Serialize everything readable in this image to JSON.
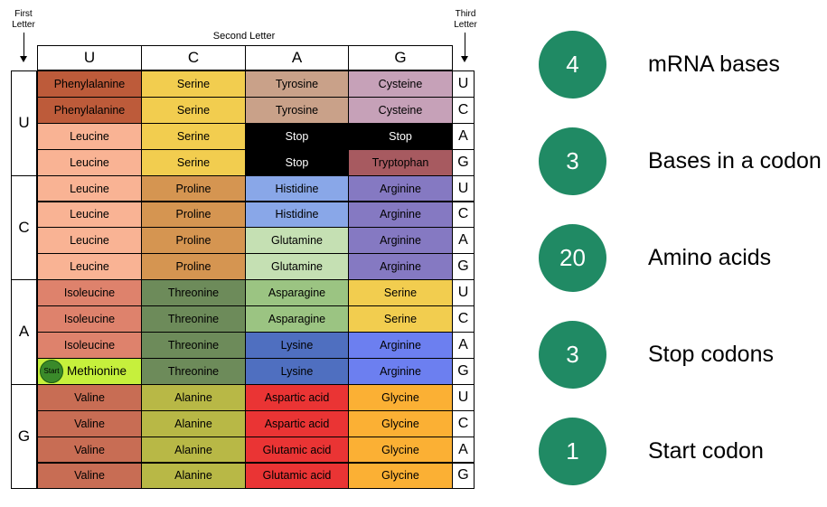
{
  "labels": {
    "first_letter": "First Letter",
    "second_letter": "Second Letter",
    "third_letter": "Third Letter"
  },
  "second_headers": [
    "U",
    "C",
    "A",
    "G"
  ],
  "first_letters": [
    "U",
    "C",
    "A",
    "G"
  ],
  "third_letters": [
    "U",
    "C",
    "A",
    "G"
  ],
  "start_badge": "Start",
  "codon_table": [
    [
      [
        "Phenylalanine",
        "#bd5b3a",
        "#000"
      ],
      [
        "Serine",
        "#f2cd4f",
        "#000"
      ],
      [
        "Tyrosine",
        "#c9a189",
        "#000"
      ],
      [
        "Cysteine",
        "#c6a1b8",
        "#000"
      ]
    ],
    [
      [
        "Phenylalanine",
        "#bd5b3a",
        "#000"
      ],
      [
        "Serine",
        "#f2cd4f",
        "#000"
      ],
      [
        "Tyrosine",
        "#c9a189",
        "#000"
      ],
      [
        "Cysteine",
        "#c6a1b8",
        "#000"
      ]
    ],
    [
      [
        "Leucine",
        "#f9b394",
        "#000"
      ],
      [
        "Serine",
        "#f2cd4f",
        "#000"
      ],
      [
        "Stop",
        "#000000",
        "#fff"
      ],
      [
        "Stop",
        "#000000",
        "#fff"
      ]
    ],
    [
      [
        "Leucine",
        "#f9b394",
        "#000"
      ],
      [
        "Serine",
        "#f2cd4f",
        "#000"
      ],
      [
        "Stop",
        "#000000",
        "#fff"
      ],
      [
        "Tryptophan",
        "#a75a60",
        "#000"
      ]
    ],
    [
      [
        "Leucine",
        "#f9b394",
        "#000"
      ],
      [
        "Proline",
        "#d59551",
        "#000"
      ],
      [
        "Histidine",
        "#89a7e8",
        "#000"
      ],
      [
        "Arginine",
        "#8579c2",
        "#000"
      ]
    ],
    [
      [
        "Leucine",
        "#f9b394",
        "#000"
      ],
      [
        "Proline",
        "#d59551",
        "#000"
      ],
      [
        "Histidine",
        "#89a7e8",
        "#000"
      ],
      [
        "Arginine",
        "#8579c2",
        "#000"
      ]
    ],
    [
      [
        "Leucine",
        "#f9b394",
        "#000"
      ],
      [
        "Proline",
        "#d59551",
        "#000"
      ],
      [
        "Glutamine",
        "#c5e0b3",
        "#000"
      ],
      [
        "Arginine",
        "#8579c2",
        "#000"
      ]
    ],
    [
      [
        "Leucine",
        "#f9b394",
        "#000"
      ],
      [
        "Proline",
        "#d59551",
        "#000"
      ],
      [
        "Glutamine",
        "#c5e0b3",
        "#000"
      ],
      [
        "Arginine",
        "#8579c2",
        "#000"
      ]
    ],
    [
      [
        "Isoleucine",
        "#de826c",
        "#000"
      ],
      [
        "Threonine",
        "#6d8b5a",
        "#000"
      ],
      [
        "Asparagine",
        "#9bc482",
        "#000"
      ],
      [
        "Serine",
        "#f2cd4f",
        "#000"
      ]
    ],
    [
      [
        "Isoleucine",
        "#de826c",
        "#000"
      ],
      [
        "Threonine",
        "#6d8b5a",
        "#000"
      ],
      [
        "Asparagine",
        "#9bc482",
        "#000"
      ],
      [
        "Serine",
        "#f2cd4f",
        "#000"
      ]
    ],
    [
      [
        "Isoleucine",
        "#de826c",
        "#000"
      ],
      [
        "Threonine",
        "#6d8b5a",
        "#000"
      ],
      [
        "Lysine",
        "#4f6fc0",
        "#000"
      ],
      [
        "Arginine",
        "#6c7ff0",
        "#000"
      ]
    ],
    [
      [
        "Methionine",
        "#c6f03c",
        "#000"
      ],
      [
        "Threonine",
        "#6d8b5a",
        "#000"
      ],
      [
        "Lysine",
        "#4f6fc0",
        "#000"
      ],
      [
        "Arginine",
        "#6c7ff0",
        "#000"
      ]
    ],
    [
      [
        "Valine",
        "#c86d54",
        "#000"
      ],
      [
        "Alanine",
        "#b8b846",
        "#000"
      ],
      [
        "Aspartic acid",
        "#ea3434",
        "#000"
      ],
      [
        "Glycine",
        "#fbb034",
        "#000"
      ]
    ],
    [
      [
        "Valine",
        "#c86d54",
        "#000"
      ],
      [
        "Alanine",
        "#b8b846",
        "#000"
      ],
      [
        "Aspartic acid",
        "#ea3434",
        "#000"
      ],
      [
        "Glycine",
        "#fbb034",
        "#000"
      ]
    ],
    [
      [
        "Valine",
        "#c86d54",
        "#000"
      ],
      [
        "Alanine",
        "#b8b846",
        "#000"
      ],
      [
        "Glutamic acid",
        "#ea3434",
        "#000"
      ],
      [
        "Glycine",
        "#fbb034",
        "#000"
      ]
    ],
    [
      [
        "Valine",
        "#c86d54",
        "#000"
      ],
      [
        "Alanine",
        "#b8b846",
        "#000"
      ],
      [
        "Glutamic acid",
        "#ea3434",
        "#000"
      ],
      [
        "Glycine",
        "#fbb034",
        "#000"
      ]
    ]
  ],
  "stats": [
    {
      "value": "4",
      "label": "mRNA bases"
    },
    {
      "value": "3",
      "label": "Bases in a codon"
    },
    {
      "value": "20",
      "label": "Amino acids"
    },
    {
      "value": "3",
      "label": "Stop codons"
    },
    {
      "value": "1",
      "label": "Start codon"
    }
  ],
  "colors": {
    "stat_circle": "#208a64"
  }
}
